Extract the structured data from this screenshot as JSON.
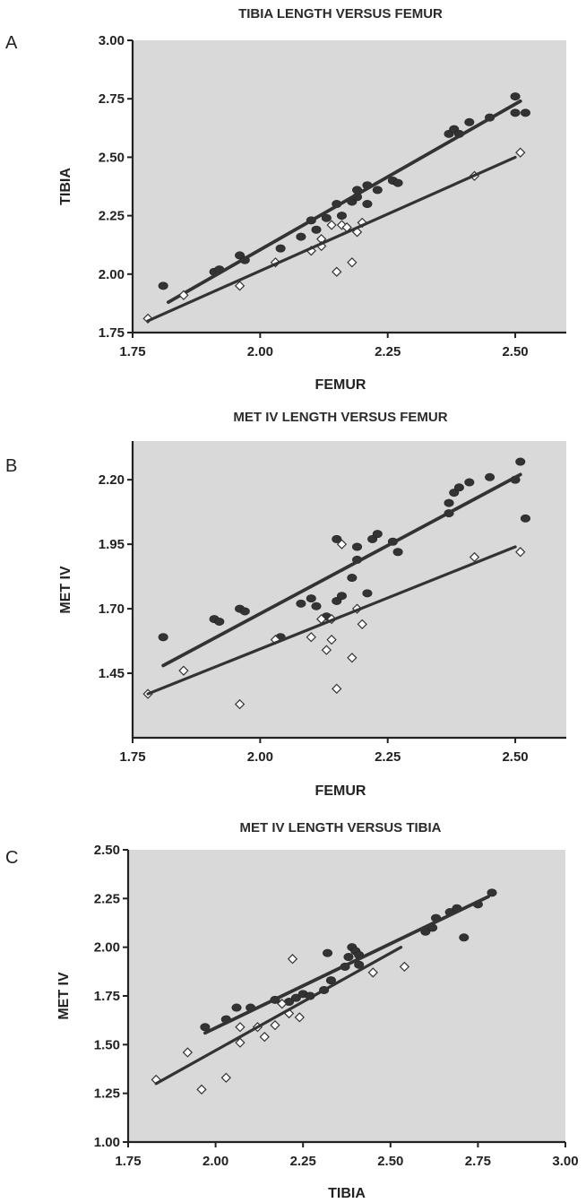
{
  "chart_data": [
    {
      "panel": "A",
      "type": "scatter",
      "title": "TIBIA LENGTH VERSUS FEMUR",
      "xlabel": "FEMUR",
      "ylabel": "TIBIA",
      "xlim": [
        1.75,
        2.6
      ],
      "ylim": [
        1.75,
        3.0
      ],
      "xticks": [
        "1.75",
        "2.00",
        "2.25",
        "2.50"
      ],
      "yticks": [
        "1.75",
        "2.00",
        "2.25",
        "2.50",
        "2.75",
        "3.00"
      ],
      "grid": false,
      "background": "#d9d9d9",
      "series": [
        {
          "marker": "filled",
          "color": "#333333",
          "points": [
            [
              1.81,
              1.95
            ],
            [
              1.91,
              2.01
            ],
            [
              1.92,
              2.02
            ],
            [
              1.96,
              2.08
            ],
            [
              1.97,
              2.06
            ],
            [
              2.04,
              2.11
            ],
            [
              2.08,
              2.16
            ],
            [
              2.1,
              2.23
            ],
            [
              2.11,
              2.19
            ],
            [
              2.13,
              2.24
            ],
            [
              2.15,
              2.3
            ],
            [
              2.16,
              2.25
            ],
            [
              2.18,
              2.31
            ],
            [
              2.19,
              2.33
            ],
            [
              2.19,
              2.36
            ],
            [
              2.21,
              2.3
            ],
            [
              2.21,
              2.38
            ],
            [
              2.23,
              2.36
            ],
            [
              2.26,
              2.4
            ],
            [
              2.27,
              2.39
            ],
            [
              2.37,
              2.6
            ],
            [
              2.38,
              2.62
            ],
            [
              2.39,
              2.6
            ],
            [
              2.41,
              2.65
            ],
            [
              2.45,
              2.67
            ],
            [
              2.5,
              2.76
            ],
            [
              2.5,
              2.69
            ],
            [
              2.52,
              2.69
            ]
          ],
          "fit": [
            [
              1.82,
              1.88
            ],
            [
              2.51,
              2.74
            ]
          ]
        },
        {
          "marker": "open",
          "color": "#ffffff",
          "points": [
            [
              1.78,
              1.81
            ],
            [
              1.85,
              1.91
            ],
            [
              1.96,
              1.95
            ],
            [
              2.03,
              2.05
            ],
            [
              2.1,
              2.1
            ],
            [
              2.12,
              2.15
            ],
            [
              2.12,
              2.12
            ],
            [
              2.14,
              2.21
            ],
            [
              2.15,
              2.01
            ],
            [
              2.16,
              2.21
            ],
            [
              2.17,
              2.2
            ],
            [
              2.18,
              2.05
            ],
            [
              2.19,
              2.18
            ],
            [
              2.2,
              2.22
            ],
            [
              2.42,
              2.42
            ],
            [
              2.51,
              2.52
            ]
          ],
          "fit": [
            [
              1.78,
              1.8
            ],
            [
              2.5,
              2.5
            ]
          ]
        }
      ]
    },
    {
      "panel": "B",
      "type": "scatter",
      "title": "MET IV LENGTH VERSUS FEMUR",
      "xlabel": "FEMUR",
      "ylabel": "MET IV",
      "xlim": [
        1.75,
        2.6
      ],
      "ylim": [
        1.2,
        2.35
      ],
      "xticks": [
        "1.75",
        "2.00",
        "2.25",
        "2.50"
      ],
      "yticks": [
        "1.45",
        "1.70",
        "1.95",
        "2.20"
      ],
      "grid": false,
      "background": "#d9d9d9",
      "series": [
        {
          "marker": "filled",
          "color": "#333333",
          "points": [
            [
              1.81,
              1.59
            ],
            [
              1.91,
              1.66
            ],
            [
              1.92,
              1.65
            ],
            [
              1.96,
              1.7
            ],
            [
              1.97,
              1.69
            ],
            [
              2.04,
              1.59
            ],
            [
              2.08,
              1.72
            ],
            [
              2.1,
              1.74
            ],
            [
              2.11,
              1.71
            ],
            [
              2.13,
              1.67
            ],
            [
              2.15,
              1.97
            ],
            [
              2.15,
              1.73
            ],
            [
              2.16,
              1.75
            ],
            [
              2.18,
              1.82
            ],
            [
              2.19,
              1.94
            ],
            [
              2.19,
              1.89
            ],
            [
              2.21,
              1.76
            ],
            [
              2.22,
              1.97
            ],
            [
              2.23,
              1.99
            ],
            [
              2.26,
              1.96
            ],
            [
              2.27,
              1.92
            ],
            [
              2.37,
              2.11
            ],
            [
              2.37,
              2.07
            ],
            [
              2.38,
              2.15
            ],
            [
              2.39,
              2.17
            ],
            [
              2.41,
              2.19
            ],
            [
              2.45,
              2.21
            ],
            [
              2.5,
              2.2
            ],
            [
              2.51,
              2.27
            ],
            [
              2.52,
              2.05
            ]
          ],
          "fit": [
            [
              1.81,
              1.48
            ],
            [
              2.51,
              2.22
            ]
          ]
        },
        {
          "marker": "open",
          "color": "#ffffff",
          "points": [
            [
              1.78,
              1.37
            ],
            [
              1.85,
              1.46
            ],
            [
              1.96,
              1.33
            ],
            [
              2.03,
              1.58
            ],
            [
              2.1,
              1.59
            ],
            [
              2.12,
              1.66
            ],
            [
              2.13,
              1.54
            ],
            [
              2.14,
              1.58
            ],
            [
              2.14,
              1.66
            ],
            [
              2.15,
              1.39
            ],
            [
              2.16,
              1.95
            ],
            [
              2.18,
              1.51
            ],
            [
              2.19,
              1.7
            ],
            [
              2.2,
              1.64
            ],
            [
              2.42,
              1.9
            ],
            [
              2.51,
              1.92
            ]
          ],
          "fit": [
            [
              1.78,
              1.37
            ],
            [
              2.5,
              1.94
            ]
          ]
        }
      ]
    },
    {
      "panel": "C",
      "type": "scatter",
      "title": "MET IV LENGTH VERSUS TIBIA",
      "xlabel": "TIBIA",
      "ylabel": "MET IV",
      "xlim": [
        1.75,
        3.0
      ],
      "ylim": [
        1.0,
        2.5
      ],
      "xticks": [
        "1.75",
        "2.00",
        "2.25",
        "2.50",
        "2.75",
        "3.00"
      ],
      "yticks": [
        "1.00",
        "1.25",
        "1.50",
        "1.75",
        "2.00",
        "2.25",
        "2.50"
      ],
      "grid": false,
      "background": "#d9d9d9",
      "series": [
        {
          "marker": "filled",
          "color": "#333333",
          "points": [
            [
              1.97,
              1.59
            ],
            [
              2.03,
              1.63
            ],
            [
              2.06,
              1.69
            ],
            [
              2.1,
              1.69
            ],
            [
              2.17,
              1.73
            ],
            [
              2.21,
              1.72
            ],
            [
              2.23,
              1.74
            ],
            [
              2.25,
              1.76
            ],
            [
              2.27,
              1.75
            ],
            [
              2.31,
              1.78
            ],
            [
              2.32,
              1.97
            ],
            [
              2.33,
              1.83
            ],
            [
              2.37,
              1.9
            ],
            [
              2.38,
              1.95
            ],
            [
              2.39,
              2.0
            ],
            [
              2.4,
              1.98
            ],
            [
              2.41,
              1.91
            ],
            [
              2.41,
              1.96
            ],
            [
              2.6,
              2.08
            ],
            [
              2.62,
              2.1
            ],
            [
              2.63,
              2.15
            ],
            [
              2.67,
              2.18
            ],
            [
              2.69,
              2.2
            ],
            [
              2.71,
              2.05
            ],
            [
              2.75,
              2.22
            ],
            [
              2.79,
              2.28
            ]
          ],
          "fit": [
            [
              1.97,
              1.56
            ],
            [
              2.78,
              2.26
            ]
          ]
        },
        {
          "marker": "open",
          "color": "#ffffff",
          "points": [
            [
              1.83,
              1.32
            ],
            [
              1.92,
              1.46
            ],
            [
              1.96,
              1.27
            ],
            [
              2.03,
              1.33
            ],
            [
              2.07,
              1.51
            ],
            [
              2.07,
              1.59
            ],
            [
              2.12,
              1.59
            ],
            [
              2.14,
              1.54
            ],
            [
              2.17,
              1.6
            ],
            [
              2.19,
              1.71
            ],
            [
              2.21,
              1.66
            ],
            [
              2.22,
              1.94
            ],
            [
              2.24,
              1.64
            ],
            [
              2.45,
              1.87
            ],
            [
              2.54,
              1.9
            ]
          ],
          "fit": [
            [
              1.83,
              1.3
            ],
            [
              2.53,
              2.0
            ]
          ]
        }
      ]
    }
  ]
}
